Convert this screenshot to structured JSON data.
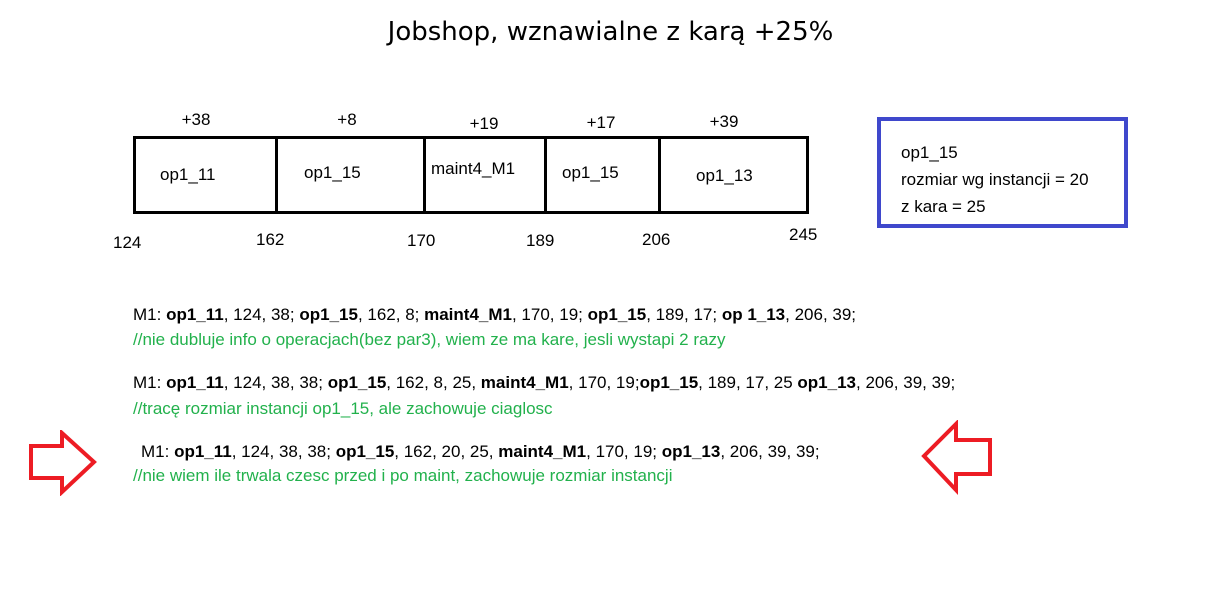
{
  "title": "Jobshop, wznawialne z karą +25%",
  "gantt": {
    "cells": [
      {
        "label": "op1_11",
        "plus": "+38"
      },
      {
        "label": "op1_15",
        "plus": "+8"
      },
      {
        "label": "maint4_M1",
        "plus": "+19"
      },
      {
        "label": "op1_15",
        "plus": "+17"
      },
      {
        "label": "op1_13",
        "plus": "+39"
      }
    ],
    "ticks": [
      "124",
      "162",
      "170",
      "189",
      "206",
      "245"
    ]
  },
  "infobox": {
    "line1": "op1_15",
    "line2": "rozmiar wg instancji = 20",
    "line3": "z kara = 25"
  },
  "formats": [
    {
      "segments": [
        {
          "text": "M1: ",
          "bold": false
        },
        {
          "text": "op1_11",
          "bold": true
        },
        {
          "text": ", 124, 38; ",
          "bold": false
        },
        {
          "text": "op1_15",
          "bold": true
        },
        {
          "text": ", 162, 8; ",
          "bold": false
        },
        {
          "text": "maint4_M1",
          "bold": true
        },
        {
          "text": ", 170, 19; ",
          "bold": false
        },
        {
          "text": "op1_15",
          "bold": true
        },
        {
          "text": ", 189, 17; ",
          "bold": false
        },
        {
          "text": "op 1_13",
          "bold": true
        },
        {
          "text": ", 206, 39;",
          "bold": false
        }
      ],
      "comment": "//nie dubluje info o operacjach(bez par3), wiem ze ma kare, jesli wystapi 2 razy"
    },
    {
      "segments": [
        {
          "text": "M1: ",
          "bold": false
        },
        {
          "text": "op1_11",
          "bold": true
        },
        {
          "text": ", 124, 38, 38; ",
          "bold": false
        },
        {
          "text": "op1_15",
          "bold": true
        },
        {
          "text": ", 162, 8, 25, ",
          "bold": false
        },
        {
          "text": "maint4_M1",
          "bold": true
        },
        {
          "text": ", 170, 19;",
          "bold": false
        },
        {
          "text": "op1_15",
          "bold": true
        },
        {
          "text": ", 189, 17, 25 ",
          "bold": false
        },
        {
          "text": "op1_13",
          "bold": true
        },
        {
          "text": ", 206, 39, 39;",
          "bold": false
        }
      ],
      "comment": "//tracę rozmiar instancji op1_15, ale zachowuje ciaglosc"
    },
    {
      "segments": [
        {
          "text": "M1: ",
          "bold": false
        },
        {
          "text": "op1_11",
          "bold": true
        },
        {
          "text": ", 124, 38, 38; ",
          "bold": false
        },
        {
          "text": "op1_15",
          "bold": true
        },
        {
          "text": ", 162, 20, 25, ",
          "bold": false
        },
        {
          "text": "maint4_M1",
          "bold": true
        },
        {
          "text": ", 170, 19; ",
          "bold": false
        },
        {
          "text": "op1_13",
          "bold": true
        },
        {
          "text": ", 206, 39, 39;",
          "bold": false
        }
      ],
      "comment": "//nie wiem ile trwala czesc przed i po maint, zachowuje rozmiar instancji"
    }
  ],
  "colors": {
    "comment": "#22b14c",
    "infobox_border": "#3f48cc",
    "arrow": "#ed1c24"
  },
  "icons": [
    "arrow-right-icon",
    "arrow-left-icon"
  ]
}
